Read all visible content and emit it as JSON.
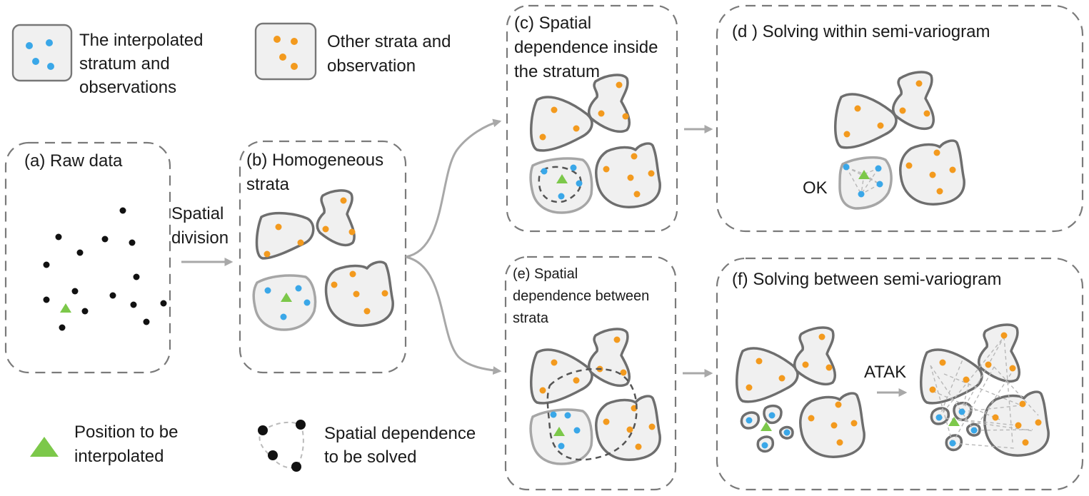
{
  "legend": {
    "interpolated_stratum": [
      "The interpolated",
      "stratum and",
      "observations"
    ],
    "other_strata": [
      "Other strata and",
      "observation"
    ],
    "position": [
      "Position to be",
      "interpolated"
    ],
    "dependence": [
      "Spatial dependence",
      "to be solved"
    ]
  },
  "panels": {
    "a": {
      "title": [
        "(a) Raw data"
      ]
    },
    "b": {
      "title": [
        "(b) Homogeneous",
        "strata"
      ]
    },
    "c": {
      "title": [
        "(c) Spatial",
        "dependence inside",
        "the stratum"
      ]
    },
    "d": {
      "title": [
        "(d ) Solving within semi-variogram"
      ],
      "label": "OK"
    },
    "e": {
      "title": [
        "(e) Spatial",
        "dependence between",
        "strata"
      ]
    },
    "f": {
      "title": [
        "(f) Solving between semi-variogram"
      ],
      "label": "ATAK"
    }
  },
  "arrow_labels": {
    "spatial_division": [
      "Spatial",
      "division"
    ]
  },
  "colors": {
    "other_observation": "#f39a1e",
    "interpolated_observation": "#3aa7e8",
    "raw_point": "#111111",
    "target_position": "#7cc84a",
    "stratum_fill": "#f0f0f0",
    "stratum_border": "#6e6e6e"
  }
}
